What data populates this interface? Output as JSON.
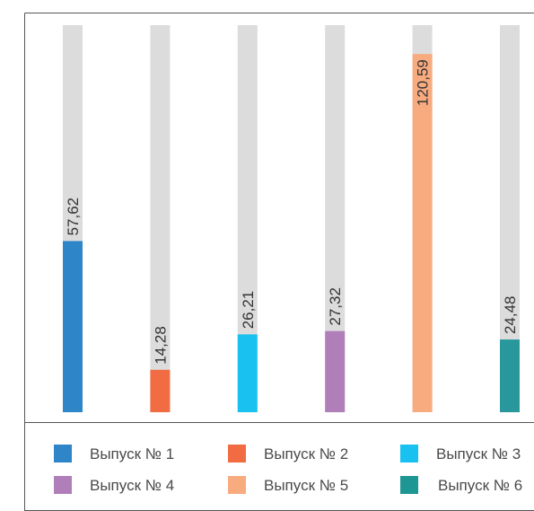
{
  "chart_data": {
    "type": "bar",
    "orientation": "vertical",
    "ylim": [
      0,
      130
    ],
    "track_color": "#dcdcdd",
    "categories": [
      "Выпуск № 1",
      "Выпуск № 2",
      "Выпуск № 3",
      "Выпуск № 4",
      "Выпуск № 5",
      "Выпуск № 6"
    ],
    "values": [
      57.62,
      14.28,
      26.21,
      27.32,
      120.59,
      24.48
    ],
    "value_labels": [
      "57,62",
      "14,28",
      "26,21",
      "27,32",
      "120,59",
      "24,48"
    ],
    "colors": [
      "#2e86c8",
      "#f26c43",
      "#18c1ef",
      "#b07fba",
      "#f9ab80",
      "#29989c"
    ],
    "grid": false,
    "legend_position": "bottom",
    "legend": [
      {
        "label": "Выпуск № 1",
        "color": "#2e86c8"
      },
      {
        "label": "Выпуск № 2",
        "color": "#f26c43"
      },
      {
        "label": "Выпуск № 3",
        "color": "#18c1ef"
      },
      {
        "label": "Выпуск № 4",
        "color": "#b07fba"
      },
      {
        "label": "Выпуск № 5",
        "color": "#f9ab80"
      },
      {
        "label": "Выпуск № 6",
        "color": "#1e9693"
      }
    ]
  }
}
